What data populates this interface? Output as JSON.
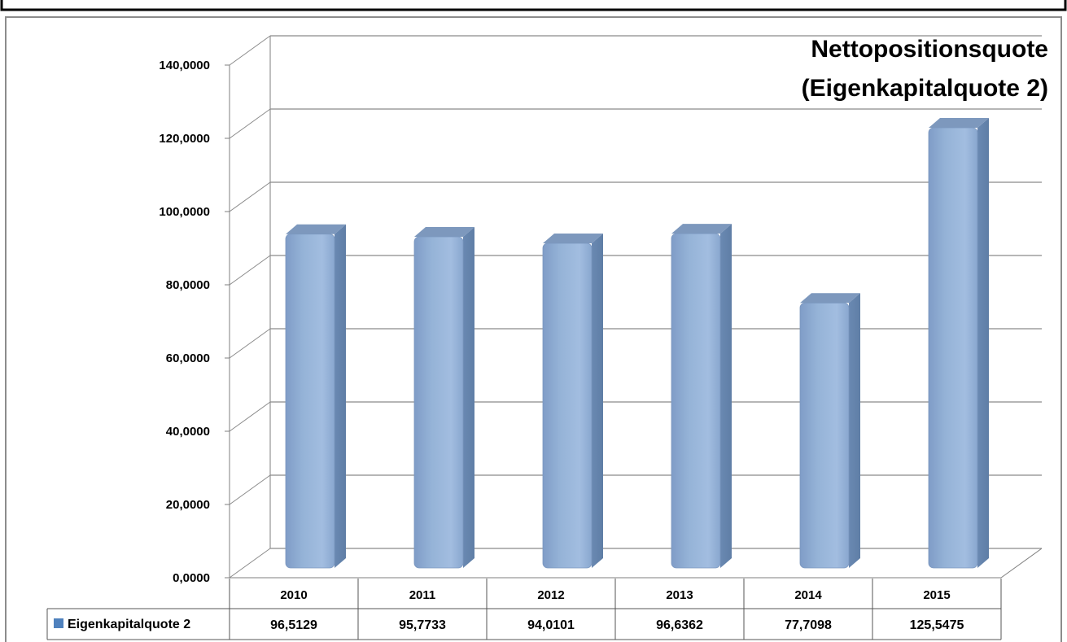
{
  "chart_data": {
    "type": "bar",
    "title_lines": [
      "Nettopositionsquote",
      "(Eigenkapitalquote 2)"
    ],
    "categories": [
      "2010",
      "2011",
      "2012",
      "2013",
      "2014",
      "2015"
    ],
    "series": [
      {
        "name": "Eigenkapitalquote 2",
        "values": [
          96.5129,
          95.7733,
          94.0101,
          96.6362,
          77.7098,
          125.5475
        ],
        "labels": [
          "96,5129",
          "95,7733",
          "94,0101",
          "96,6362",
          "77,7098",
          "125,5475"
        ]
      }
    ],
    "ylim": [
      0,
      140
    ],
    "yticks": [
      0,
      20,
      40,
      60,
      80,
      100,
      120,
      140
    ],
    "ytick_labels": [
      "0,0000",
      "20,0000",
      "40,0000",
      "60,0000",
      "80,0000",
      "100,0000",
      "120,0000",
      "140,0000"
    ],
    "grid": true,
    "data_table": true,
    "colors": {
      "bar_front": "#95b3d7",
      "bar_side": "#5f7ea6",
      "bar_top": "#7d98bd",
      "legend_key": "#4f81bd"
    }
  }
}
